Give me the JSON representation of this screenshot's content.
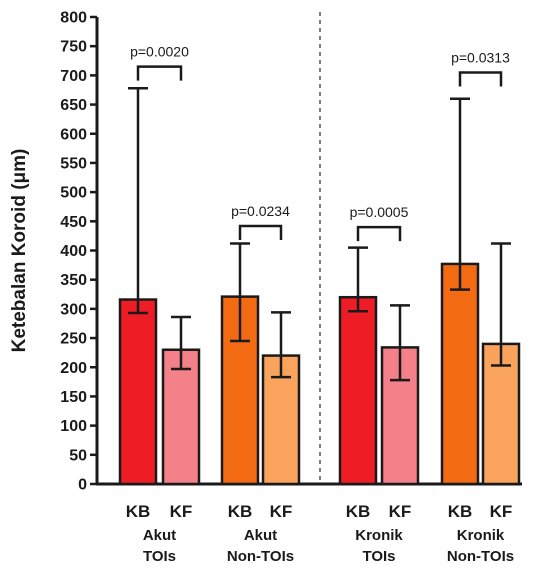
{
  "chart_data": {
    "type": "bar",
    "ylabel": "Ketebalan Koroid (μm)",
    "ylim": [
      0,
      800
    ],
    "yticks": [
      0,
      50,
      100,
      150,
      200,
      250,
      300,
      350,
      400,
      450,
      500,
      550,
      600,
      650,
      700,
      750,
      800
    ],
    "grid": false,
    "separator_after_group": 2,
    "categories": [
      "KB",
      "KF",
      "KB",
      "KF",
      "KB",
      "KF",
      "KB",
      "KF"
    ],
    "values": [
      316,
      230,
      321,
      220,
      320,
      234,
      377,
      240
    ],
    "error_low": [
      293,
      197,
      245,
      183,
      296,
      178,
      333,
      203
    ],
    "error_high": [
      678,
      286,
      412,
      294,
      405,
      306,
      660,
      412
    ],
    "colors": [
      "#ee1c24",
      "#f4808a",
      "#f26a12",
      "#f9a35c",
      "#ee1c24",
      "#f4808a",
      "#f26a12",
      "#f9a35c"
    ],
    "groups": [
      {
        "lines": [
          "Akut",
          "TOIs"
        ],
        "p_label": "p=0.0020"
      },
      {
        "lines": [
          "Akut",
          "Non-TOIs"
        ],
        "p_label": "p=0.0234"
      },
      {
        "lines": [
          "Kronik",
          "TOIs"
        ],
        "p_label": "p=0.0005"
      },
      {
        "lines": [
          "Kronik",
          "Non-TOIs"
        ],
        "p_label": "p=0.0313"
      }
    ],
    "significance": [
      {
        "group": 0,
        "level": 715
      },
      {
        "group": 1,
        "level": 442
      },
      {
        "group": 2,
        "level": 440
      },
      {
        "group": 3,
        "level": 705
      }
    ]
  }
}
